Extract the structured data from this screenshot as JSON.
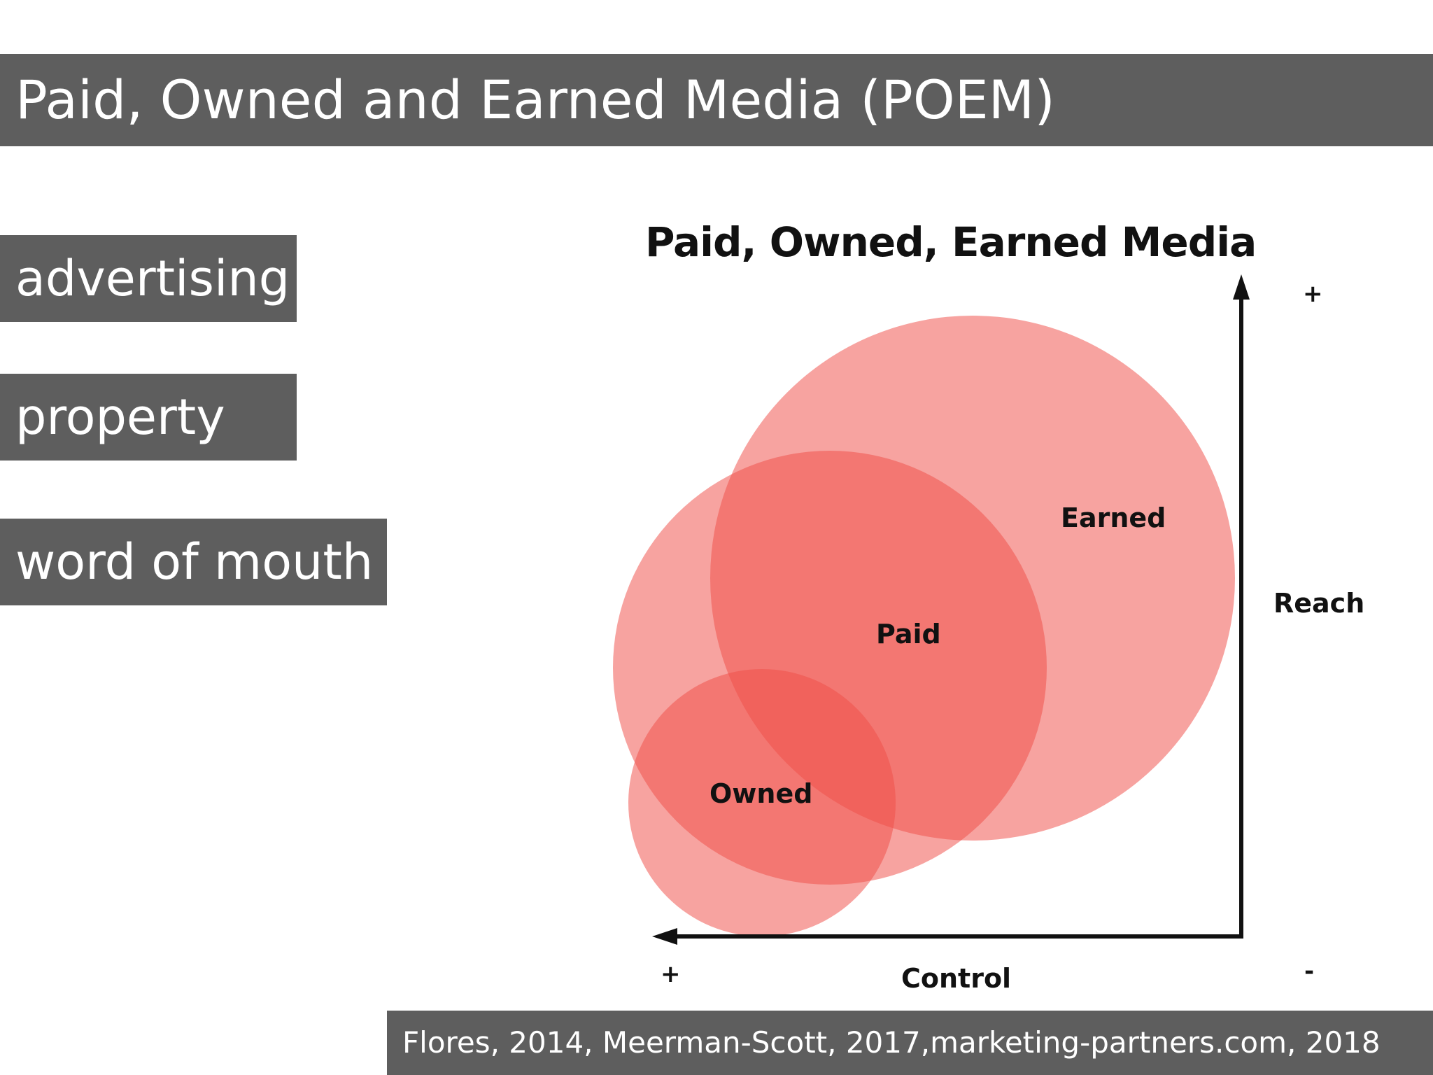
{
  "slide": {
    "title": "Paid, Owned and Earned Media (POEM)",
    "tags": [
      "advertising",
      "property",
      "word of mouth"
    ],
    "citation": "Flores, 2014, Meerman-Scott, 2017,marketing-partners.com, 2018"
  },
  "diagram": {
    "title": "Paid, Owned, Earned Media",
    "circles": {
      "earned": "Earned",
      "paid": "Paid",
      "owned": "Owned"
    },
    "axes": {
      "vertical_label": "Reach",
      "vertical_high": "+",
      "horizontal_label": "Control",
      "horizontal_high": "+",
      "horizontal_low": "-"
    },
    "colors": {
      "circle_fill": "#ef4e48",
      "axis": "#111111",
      "bar_background": "#5e5e5e"
    }
  }
}
